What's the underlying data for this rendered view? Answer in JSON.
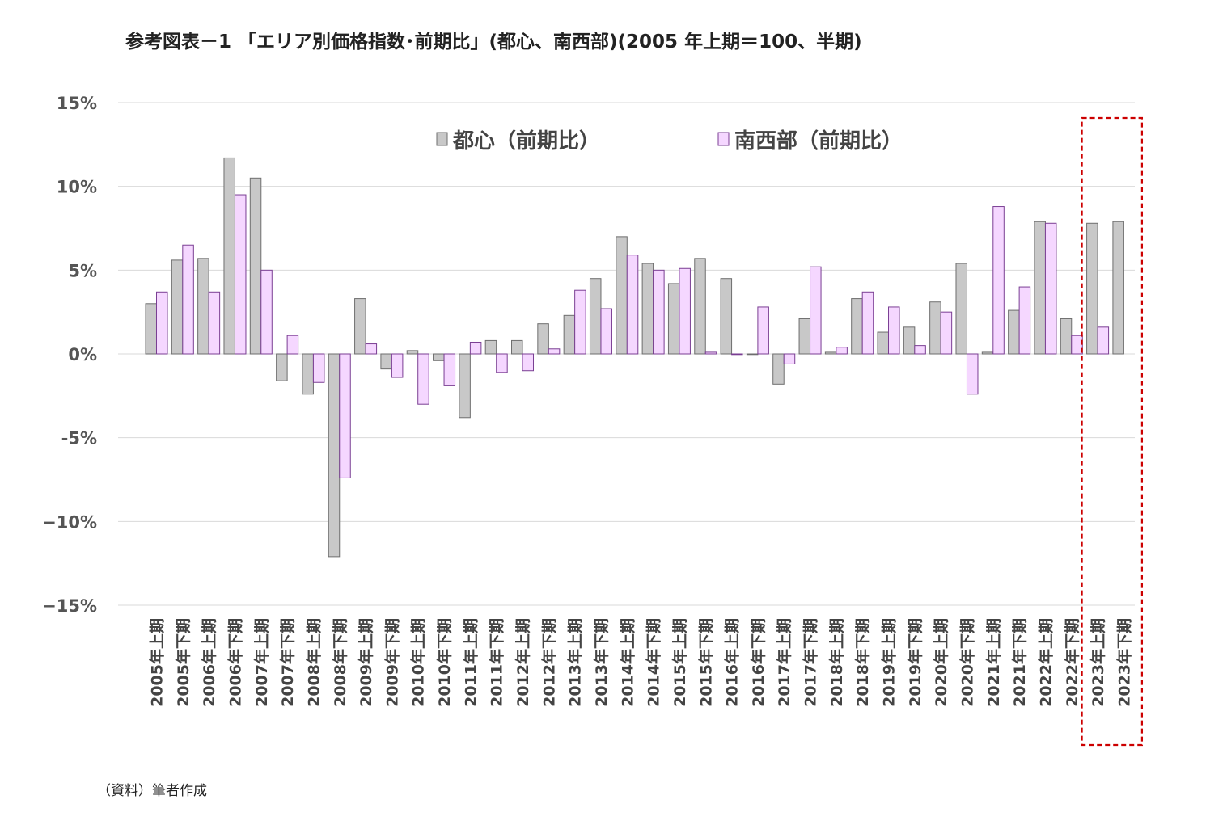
{
  "title": "参考図表－1 「エリア別価格指数･前期比」(都心、南西部)(2005 年上期＝100、半期)",
  "source": "（資料）筆者作成",
  "colors": {
    "series1_fill": "#c8c8c8",
    "series1_stroke": "#6e6e6e",
    "series2_fill": "#f5d7ff",
    "series2_stroke": "#7a3e93",
    "highlight_box": "#cc0000",
    "gridline": "#d9d9d9"
  },
  "chart_data": {
    "type": "bar",
    "ylim": [
      -15,
      15
    ],
    "yticks": [
      15,
      10,
      5,
      0,
      -5,
      -10,
      -15
    ],
    "ytick_labels": [
      "15%",
      "10%",
      "5%",
      "0%",
      "-5%",
      "−10%",
      "−15%"
    ],
    "grid": true,
    "legend_position": "top",
    "highlight_categories": [
      "2023年上期",
      "2023年下期"
    ],
    "categories": [
      "2005年上期",
      "2005年下期",
      "2006年上期",
      "2006年下期",
      "2007年上期",
      "2007年下期",
      "2008年上期",
      "2008年下期",
      "2009年上期",
      "2009年下期",
      "2010年上期",
      "2010年下期",
      "2011年上期",
      "2011年下期",
      "2012年上期",
      "2012年下期",
      "2013年上期",
      "2013年下期",
      "2014年上期",
      "2014年下期",
      "2015年上期",
      "2015年下期",
      "2016年上期",
      "2016年下期",
      "2017年上期",
      "2017年下期",
      "2018年上期",
      "2018年下期",
      "2019年上期",
      "2019年下期",
      "2020年上期",
      "2020年下期",
      "2021年上期",
      "2021年下期",
      "2022年上期",
      "2022年下期",
      "2023年上期",
      "2023年下期"
    ],
    "series": [
      {
        "name": "都心（前期比）",
        "values": [
          3.0,
          5.6,
          5.7,
          11.7,
          10.5,
          -1.6,
          -2.4,
          -12.1,
          3.3,
          -0.9,
          0.2,
          -0.4,
          -3.8,
          0.8,
          0.8,
          1.8,
          2.3,
          4.5,
          7.0,
          5.4,
          4.2,
          5.7,
          4.5,
          0.0,
          -1.8,
          2.1,
          0.1,
          3.3,
          1.3,
          1.6,
          3.1,
          5.4,
          0.1,
          2.6,
          7.9,
          2.1,
          7.8,
          7.9
        ]
      },
      {
        "name": "南西部（前期比）",
        "values": [
          3.7,
          6.5,
          3.7,
          9.5,
          5.0,
          1.1,
          -1.7,
          -7.4,
          0.6,
          -1.4,
          -3.0,
          -1.9,
          0.7,
          -1.1,
          -1.0,
          0.3,
          3.8,
          2.7,
          5.9,
          5.0,
          5.1,
          0.1,
          0.0,
          2.8,
          -0.6,
          5.2,
          0.4,
          3.7,
          2.8,
          0.5,
          2.5,
          -2.4,
          8.8,
          4.0,
          7.8,
          1.1,
          1.6,
          null
        ]
      }
    ]
  }
}
